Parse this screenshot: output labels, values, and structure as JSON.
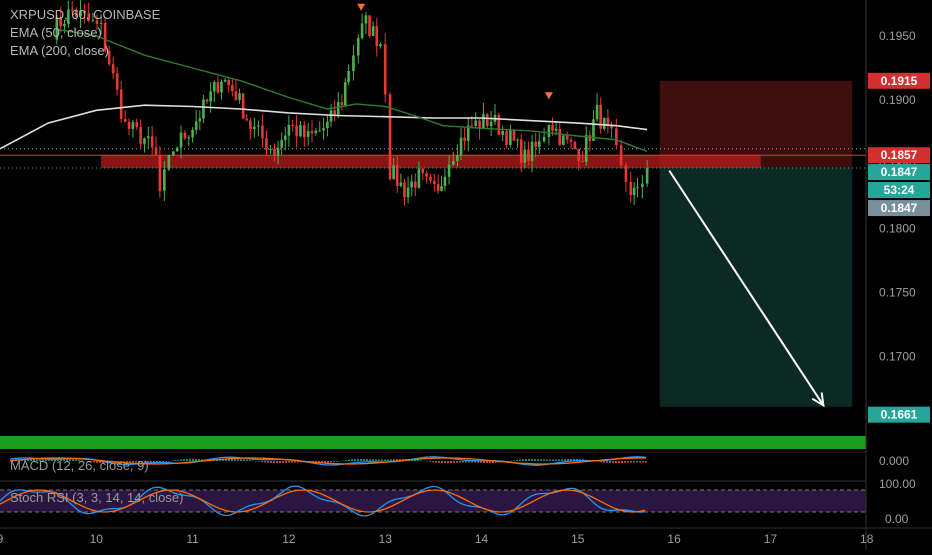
{
  "header": {
    "symbol_line": "XRPUSD, 60, COINBASE",
    "ema50_label": "EMA (50, close)",
    "ema200_label": "EMA (200, close)"
  },
  "indicators": {
    "macd_label": "MACD (12, 26, close, 9)",
    "stoch_label": "Stoch RSI (3, 3, 14, 14, close)"
  },
  "colors": {
    "up": "#4caf50",
    "down": "#e53935",
    "ema50": "#2e7d32",
    "ema200": "#e0e0e0",
    "zone": "#b71c1c",
    "risk_box": "#3e0d0d",
    "reward_box": "#0c2a24",
    "target_bar": "#1b9e1b",
    "stoch_band": "#2a1640",
    "macd_line": "#2196f3",
    "signal_line": "#ff6d00"
  },
  "chart_data": {
    "type": "candlestick",
    "title": "XRPUSD, 60, COINBASE",
    "ylim": [
      0.1635,
      0.1978
    ],
    "y_ticks": [
      0.195,
      0.19,
      0.185,
      0.18,
      0.175,
      0.17
    ],
    "x_ticks": [
      "9",
      "10",
      "11",
      "12",
      "13",
      "14",
      "15",
      "16",
      "17",
      "18"
    ],
    "x_range_days": [
      9,
      18
    ],
    "last_bar_day": 15.72,
    "candle_anchors": [
      [
        9.55,
        0.1955
      ],
      [
        9.75,
        0.197
      ],
      [
        10.05,
        0.1955
      ],
      [
        10.3,
        0.188
      ],
      [
        10.5,
        0.187
      ],
      [
        10.62,
        0.1855
      ],
      [
        10.66,
        0.1828
      ],
      [
        10.8,
        0.1862
      ],
      [
        11.0,
        0.188
      ],
      [
        11.15,
        0.1898
      ],
      [
        11.3,
        0.1918
      ],
      [
        11.45,
        0.1905
      ],
      [
        11.6,
        0.188
      ],
      [
        11.85,
        0.186
      ],
      [
        12.0,
        0.188
      ],
      [
        12.2,
        0.187
      ],
      [
        12.4,
        0.188
      ],
      [
        12.55,
        0.19
      ],
      [
        12.62,
        0.1925
      ],
      [
        12.72,
        0.195
      ],
      [
        12.8,
        0.196
      ],
      [
        12.95,
        0.1945
      ],
      [
        13.0,
        0.191
      ],
      [
        13.05,
        0.1845
      ],
      [
        13.2,
        0.183
      ],
      [
        13.35,
        0.184
      ],
      [
        13.55,
        0.1825
      ],
      [
        13.62,
        0.1848
      ],
      [
        13.75,
        0.1865
      ],
      [
        13.9,
        0.188
      ],
      [
        14.1,
        0.1885
      ],
      [
        14.3,
        0.187
      ],
      [
        14.45,
        0.1855
      ],
      [
        14.6,
        0.1865
      ],
      [
        14.7,
        0.1885
      ],
      [
        14.85,
        0.1868
      ],
      [
        15.05,
        0.1858
      ],
      [
        15.2,
        0.189
      ],
      [
        15.35,
        0.187
      ],
      [
        15.45,
        0.1845
      ],
      [
        15.55,
        0.183
      ],
      [
        15.62,
        0.1826
      ],
      [
        15.72,
        0.1847
      ]
    ],
    "ema50": [
      [
        9.6,
        0.1955
      ],
      [
        10.0,
        0.195
      ],
      [
        10.5,
        0.1935
      ],
      [
        11.0,
        0.1925
      ],
      [
        11.5,
        0.1915
      ],
      [
        12.0,
        0.1902
      ],
      [
        12.4,
        0.1893
      ],
      [
        12.7,
        0.1897
      ],
      [
        13.0,
        0.1895
      ],
      [
        13.3,
        0.1888
      ],
      [
        13.6,
        0.188
      ],
      [
        14.0,
        0.1878
      ],
      [
        14.5,
        0.1876
      ],
      [
        15.0,
        0.1872
      ],
      [
        15.4,
        0.1869
      ],
      [
        15.72,
        0.186
      ]
    ],
    "ema200": [
      [
        9.0,
        0.1862
      ],
      [
        9.5,
        0.1882
      ],
      [
        10.0,
        0.1892
      ],
      [
        10.5,
        0.1896
      ],
      [
        11.0,
        0.1895
      ],
      [
        11.5,
        0.1893
      ],
      [
        12.0,
        0.189
      ],
      [
        12.5,
        0.1888
      ],
      [
        13.0,
        0.1887
      ],
      [
        13.5,
        0.1886
      ],
      [
        14.0,
        0.1886
      ],
      [
        14.5,
        0.1884
      ],
      [
        15.0,
        0.1882
      ],
      [
        15.4,
        0.188
      ],
      [
        15.72,
        0.1877
      ]
    ],
    "markers": [
      {
        "day": 12.75,
        "price": 0.1972
      },
      {
        "day": 14.7,
        "price": 0.1903
      }
    ],
    "zone": {
      "from_day": 10.05,
      "to_day": 16.9,
      "low": 0.1847,
      "high": 0.1857
    },
    "entry": 0.1857,
    "current_line": 0.1847,
    "position": {
      "from_day": 15.85,
      "to_day": 17.85,
      "stop": 0.1915,
      "entry": 0.1847,
      "target": 0.1661
    },
    "arrow": {
      "from": [
        15.95,
        0.1845
      ],
      "to": [
        17.55,
        0.1662
      ]
    },
    "price_labels": [
      {
        "value": "0.1915",
        "bg": "#d32f2f"
      },
      {
        "value": "0.1857",
        "bg": "#d32f2f"
      },
      {
        "value": "0.1847",
        "bg": "#26a69a"
      },
      {
        "value": "53:24",
        "bg": "#26a69a"
      },
      {
        "value": "0.1847",
        "bg": "#78909c"
      },
      {
        "value": "0.1661",
        "bg": "#26a69a"
      }
    ],
    "macd_ticks": [
      "0.000"
    ],
    "stoch_ticks": [
      "100.00",
      "0.00"
    ],
    "stoch_bands": [
      80,
      20
    ]
  }
}
